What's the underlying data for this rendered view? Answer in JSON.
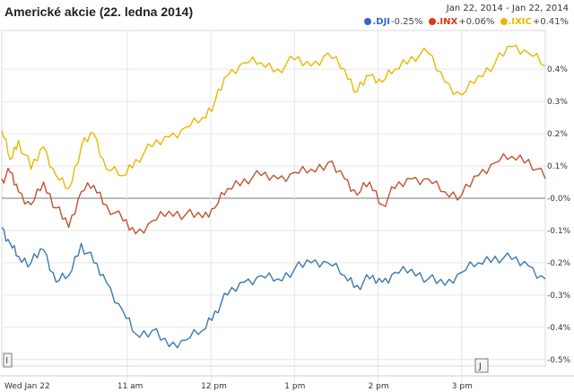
{
  "title": "Americké akcie (22. ledna 2014)",
  "date_range": {
    "start": "Jan 22, 2014",
    "separator": "-",
    "end": "Jan 22, 2014"
  },
  "legend": [
    {
      "symbol": ".DJI",
      "change": "-0.25%",
      "color": "#3366cc"
    },
    {
      "symbol": ".INX",
      "change": "+0.06%",
      "color": "#dc3912"
    },
    {
      "symbol": ".IXIC",
      "change": "+0.41%",
      "color": "#e8b800"
    }
  ],
  "range_handles": {
    "left": "l",
    "right": "J"
  },
  "chart_data": {
    "type": "line",
    "title": "Americké akcie (22. ledna 2014)",
    "xlabel": "",
    "ylabel": "",
    "x_unit": "hours (time of day, 22 Jan 2014)",
    "x_ticks": [
      {
        "x": 9.5,
        "label": "Wed Jan 22"
      },
      {
        "x": 11,
        "label": "11 am"
      },
      {
        "x": 12,
        "label": "12 pm"
      },
      {
        "x": 13,
        "label": "1 pm"
      },
      {
        "x": 14,
        "label": "2 pm"
      },
      {
        "x": 15,
        "label": "3 pm"
      }
    ],
    "y_ticks": [
      "0.4%",
      "0.3%",
      "0.2%",
      "0.1%",
      "-0.0%",
      "-0.1%",
      "-0.2%",
      "-0.3%",
      "-0.4%",
      "-0.5%"
    ],
    "y_tick_values": [
      0.4,
      0.3,
      0.2,
      0.1,
      0.0,
      -0.1,
      -0.2,
      -0.3,
      -0.4,
      -0.5
    ],
    "xlim": [
      9.5,
      16
    ],
    "ylim": [
      -0.52,
      0.52
    ],
    "grid": true,
    "legend_position": "top-right",
    "series": [
      {
        "name": ".IXIC",
        "color": "#e8b800",
        "x": [
          9.5,
          9.6,
          9.7,
          9.85,
          10.0,
          10.15,
          10.3,
          10.45,
          10.6,
          10.75,
          10.95,
          11.1,
          11.3,
          11.5,
          11.7,
          11.9,
          12.05,
          12.2,
          12.4,
          12.6,
          12.8,
          13.0,
          13.2,
          13.4,
          13.6,
          13.75,
          13.9,
          14.05,
          14.2,
          14.4,
          14.6,
          14.8,
          15.0,
          15.2,
          15.4,
          15.6,
          15.8,
          16.0
        ],
        "y": [
          0.21,
          0.12,
          0.18,
          0.09,
          0.16,
          0.07,
          0.03,
          0.16,
          0.2,
          0.09,
          0.07,
          0.12,
          0.16,
          0.19,
          0.22,
          0.25,
          0.3,
          0.38,
          0.42,
          0.42,
          0.4,
          0.43,
          0.41,
          0.45,
          0.4,
          0.33,
          0.38,
          0.36,
          0.4,
          0.44,
          0.45,
          0.36,
          0.32,
          0.38,
          0.42,
          0.47,
          0.45,
          0.41
        ]
      },
      {
        "name": ".INX",
        "color": "#c0532f",
        "x": [
          9.5,
          9.6,
          9.7,
          9.85,
          10.0,
          10.15,
          10.3,
          10.45,
          10.6,
          10.75,
          10.95,
          11.1,
          11.3,
          11.5,
          11.7,
          11.9,
          12.05,
          12.2,
          12.4,
          12.6,
          12.8,
          13.0,
          13.2,
          13.4,
          13.6,
          13.75,
          13.9,
          14.05,
          14.2,
          14.4,
          14.6,
          14.8,
          15.0,
          15.2,
          15.4,
          15.6,
          15.8,
          16.0
        ],
        "y": [
          0.06,
          0.08,
          0.02,
          -0.02,
          0.05,
          -0.03,
          -0.09,
          0.02,
          0.04,
          -0.02,
          -0.07,
          -0.11,
          -0.07,
          -0.04,
          -0.05,
          -0.06,
          -0.03,
          0.03,
          0.06,
          0.07,
          0.06,
          0.08,
          0.09,
          0.11,
          0.06,
          0.01,
          0.05,
          -0.02,
          0.03,
          0.06,
          0.06,
          0.02,
          0.01,
          0.07,
          0.11,
          0.13,
          0.12,
          0.06
        ]
      },
      {
        "name": ".DJI",
        "color": "#3a7ab0",
        "x": [
          9.5,
          9.6,
          9.7,
          9.85,
          10.0,
          10.15,
          10.3,
          10.45,
          10.6,
          10.75,
          10.95,
          11.1,
          11.3,
          11.5,
          11.7,
          11.9,
          12.05,
          12.2,
          12.4,
          12.6,
          12.8,
          13.0,
          13.2,
          13.4,
          13.6,
          13.75,
          13.9,
          14.05,
          14.2,
          14.4,
          14.6,
          14.8,
          15.0,
          15.2,
          15.4,
          15.6,
          15.8,
          16.0
        ],
        "y": [
          -0.09,
          -0.14,
          -0.18,
          -0.2,
          -0.16,
          -0.26,
          -0.24,
          -0.14,
          -0.2,
          -0.26,
          -0.35,
          -0.42,
          -0.41,
          -0.46,
          -0.44,
          -0.41,
          -0.35,
          -0.3,
          -0.26,
          -0.24,
          -0.25,
          -0.22,
          -0.2,
          -0.2,
          -0.24,
          -0.27,
          -0.25,
          -0.26,
          -0.23,
          -0.22,
          -0.25,
          -0.27,
          -0.23,
          -0.2,
          -0.18,
          -0.19,
          -0.21,
          -0.25
        ]
      }
    ]
  }
}
